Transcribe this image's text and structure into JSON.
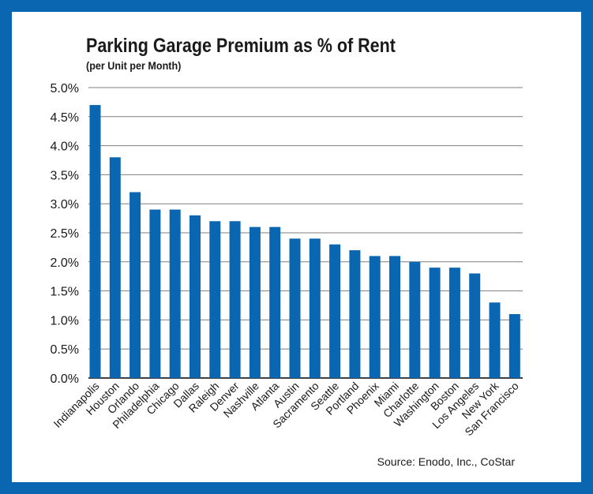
{
  "chart_data": {
    "type": "bar",
    "title": "Parking Garage Premium as % of Rent",
    "subtitle": "(per Unit per Month)",
    "xlabel": "",
    "ylabel": "",
    "categories": [
      "Indianapolis",
      "Houston",
      "Orlando",
      "Philadelphia",
      "Chicago",
      "Dallas",
      "Raleigh",
      "Denver",
      "Nashville",
      "Atlanta",
      "Austin",
      "Sacramento",
      "Seattle",
      "Portland",
      "Phoenix",
      "Miami",
      "Charlotte",
      "Washington",
      "Boston",
      "Los Angeles",
      "New York",
      "San Francisco"
    ],
    "values": [
      4.7,
      3.8,
      3.2,
      2.9,
      2.9,
      2.8,
      2.7,
      2.7,
      2.6,
      2.6,
      2.4,
      2.4,
      2.3,
      2.2,
      2.1,
      2.1,
      2.0,
      1.9,
      1.9,
      1.8,
      1.3,
      1.1
    ],
    "ylim": [
      0,
      5
    ],
    "yticks": [
      0,
      0.5,
      1,
      1.5,
      2,
      2.5,
      3,
      3.5,
      4,
      4.5,
      5
    ],
    "ytick_labels": [
      "0.0%",
      "0.5%",
      "1.0%",
      "1.5%",
      "2.0%",
      "2.5%",
      "3.0%",
      "3.5%",
      "4.0%",
      "4.5%",
      "5.0%"
    ],
    "grid": true,
    "legend": "none",
    "bar_color": "#0b66b2",
    "source": "Source: Enodo, Inc., CoStar"
  },
  "colors": {
    "frame": "#0b66b2",
    "bar": "#0b66b2",
    "grid": "#7f7f7f"
  }
}
